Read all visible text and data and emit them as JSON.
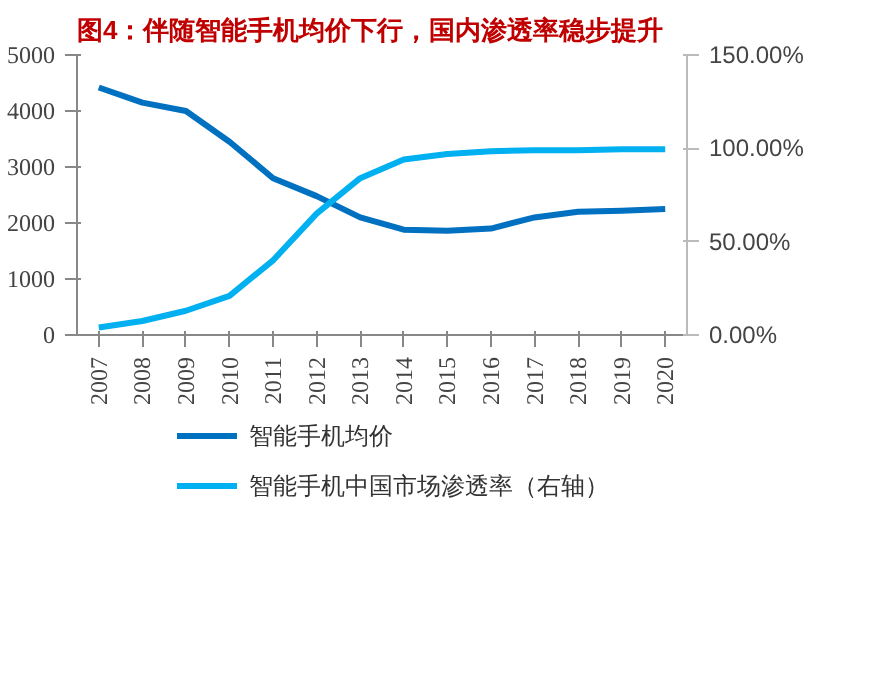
{
  "chart_data": {
    "type": "line",
    "title": "图4：伴随智能手机均价下行，国内渗透率稳步提升",
    "categories": [
      "2007",
      "2008",
      "2009",
      "2010",
      "2011",
      "2012",
      "2013",
      "2014",
      "2015",
      "2016",
      "2017",
      "2018",
      "2019",
      "2020"
    ],
    "series": [
      {
        "name": "智能手机均价",
        "color": "#0070c0",
        "values": [
          4420,
          4150,
          4000,
          3450,
          2800,
          2480,
          2100,
          1880,
          1860,
          1900,
          2100,
          2200,
          2220,
          2250
        ]
      },
      {
        "name": "智能手机中国市场渗透率（右轴）",
        "color": "#00b0f0",
        "axis": "y2",
        "values": [
          4,
          7.5,
          13,
          21,
          40,
          65,
          84,
          94,
          97,
          98.5,
          99,
          99,
          99.5,
          99.5
        ]
      }
    ],
    "ylim": [
      0,
      5000
    ],
    "yticks": [
      0,
      1000,
      2000,
      3000,
      4000,
      5000
    ],
    "y2lim": [
      0,
      150
    ],
    "y2ticks": [
      {
        "value": 0,
        "label": "0.00%"
      },
      {
        "value": 50,
        "label": "50.00%"
      },
      {
        "value": 100,
        "label": "100.00%"
      },
      {
        "value": 150,
        "label": "150.00%"
      }
    ],
    "grid": false,
    "legend": "bottom",
    "line_style": "solid",
    "marker": "none"
  }
}
